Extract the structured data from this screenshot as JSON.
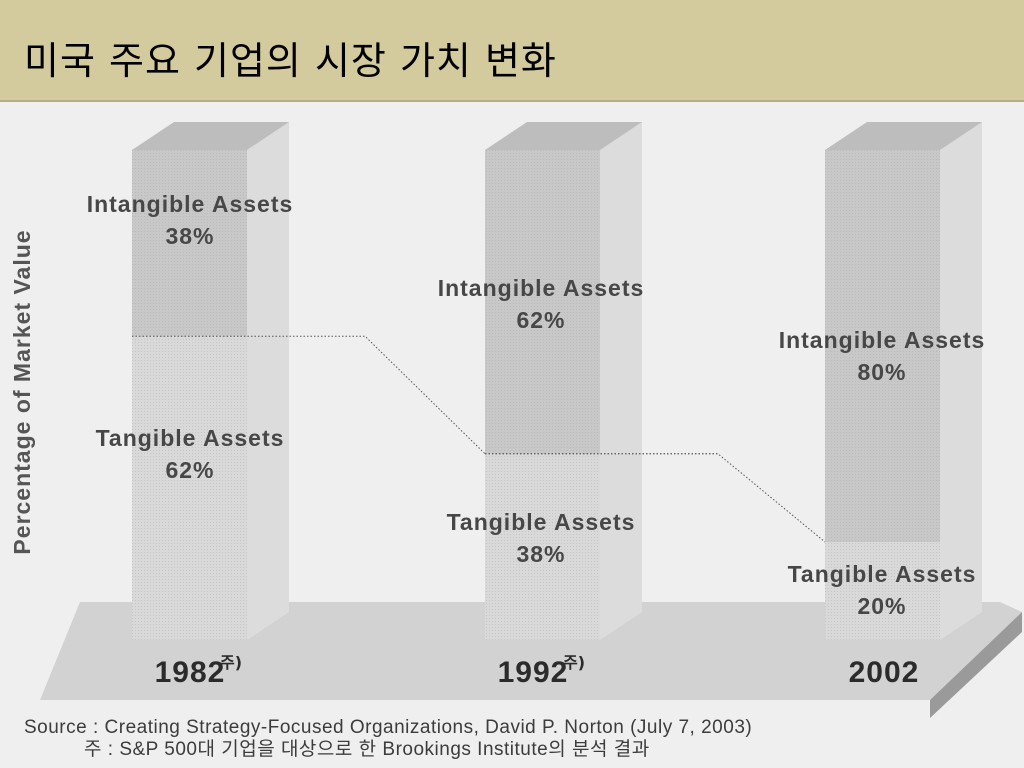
{
  "slide": {
    "title": "미국 주요 기업의 시장 가치 변화"
  },
  "source": {
    "line1": "Source : Creating Strategy-Focused Organizations, David P. Norton (July 7, 2003)",
    "line2": "주 : S&P 500대 기업을 대상으로 한 Brookings Institute의 분석 결과"
  },
  "chart_data": {
    "type": "bar",
    "stacked": true,
    "categories": [
      "1982",
      "1992",
      "2002"
    ],
    "category_notes": [
      "주)",
      "주)",
      ""
    ],
    "ylabel": "Percentage of Market Value",
    "ylim": [
      0,
      100
    ],
    "series": [
      {
        "name": "Tangible Assets",
        "values": [
          62,
          38,
          20
        ]
      },
      {
        "name": "Intangible Assets",
        "values": [
          38,
          62,
          80
        ]
      }
    ],
    "colors": {
      "tangible": "#d9d9d9",
      "intangible": "#c8c8c8",
      "floor": "#d2d2d2"
    }
  }
}
